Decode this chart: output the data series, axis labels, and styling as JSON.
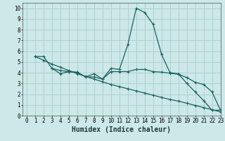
{
  "xlabel": "Humidex (Indice chaleur)",
  "bg_color": "#cce8e8",
  "grid_color": "#aacccc",
  "line_color": "#1a6060",
  "xlim": [
    -0.5,
    23
  ],
  "ylim": [
    0,
    10.5
  ],
  "xticks": [
    0,
    1,
    2,
    3,
    4,
    5,
    6,
    7,
    8,
    9,
    10,
    11,
    12,
    13,
    14,
    15,
    16,
    17,
    18,
    19,
    20,
    21,
    22,
    23
  ],
  "yticks": [
    0,
    1,
    2,
    3,
    4,
    5,
    6,
    7,
    8,
    9,
    10
  ],
  "line1_x": [
    1,
    2,
    3,
    4,
    5,
    6,
    7,
    8,
    9,
    10,
    11,
    12,
    13,
    14,
    15,
    16,
    17,
    18,
    19,
    20,
    21,
    22,
    23
  ],
  "line1_y": [
    5.5,
    5.5,
    4.4,
    3.9,
    4.1,
    4.0,
    3.6,
    3.6,
    3.4,
    4.4,
    4.3,
    6.6,
    10.0,
    9.6,
    8.5,
    5.7,
    4.0,
    3.9,
    3.0,
    2.2,
    1.4,
    0.5,
    0.5
  ],
  "line2_x": [
    1,
    2,
    3,
    4,
    5,
    6,
    7,
    8,
    9,
    10,
    11,
    12,
    13,
    14,
    15,
    16,
    17,
    18,
    19,
    20,
    21,
    22,
    23
  ],
  "line2_y": [
    5.5,
    5.15,
    4.8,
    4.5,
    4.2,
    3.9,
    3.65,
    3.4,
    3.15,
    2.9,
    2.7,
    2.5,
    2.3,
    2.1,
    1.9,
    1.7,
    1.5,
    1.35,
    1.15,
    0.95,
    0.75,
    0.55,
    0.35
  ],
  "line3_x": [
    3,
    4,
    5,
    6,
    7,
    8,
    9,
    10,
    11,
    12,
    13,
    14,
    15,
    16,
    17,
    18,
    19,
    20,
    21,
    22,
    23
  ],
  "line3_y": [
    4.4,
    4.2,
    4.1,
    4.05,
    3.6,
    3.9,
    3.4,
    4.1,
    4.1,
    4.1,
    4.3,
    4.3,
    4.1,
    4.05,
    3.95,
    3.85,
    3.55,
    3.1,
    2.9,
    2.2,
    0.5
  ],
  "marker": "+",
  "markersize": 3,
  "linewidth": 0.9,
  "xlabel_fontsize": 7,
  "tick_fontsize": 5.5
}
